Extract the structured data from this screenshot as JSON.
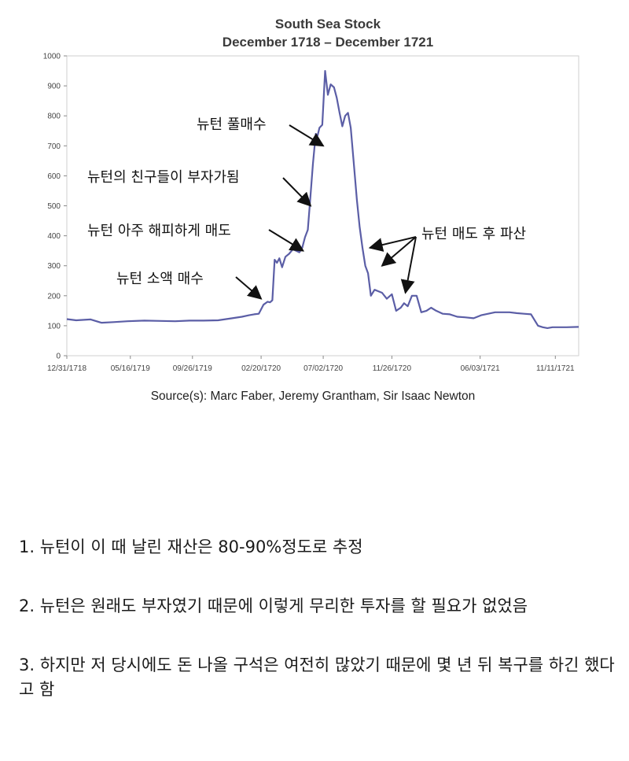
{
  "chart_data": {
    "type": "line",
    "title": "South Sea Stock",
    "subtitle": "December 1718 – December 1721",
    "source": "Source(s): Marc Faber, Jeremy Grantham, Sir Isaac Newton",
    "xlabel": "",
    "ylabel": "",
    "ylim": [
      0,
      1000
    ],
    "yticks": [
      0,
      100,
      200,
      300,
      400,
      500,
      600,
      700,
      800,
      900,
      1000
    ],
    "x_start": "12/31/1718",
    "x_end": "12/31/1721",
    "xticks": [
      "12/31/1718",
      "05/16/1719",
      "09/26/1719",
      "02/20/1720",
      "07/02/1720",
      "11/26/1720",
      "06/03/1721",
      "11/11/1721"
    ],
    "grid": false,
    "line_color": "#5b5ea6",
    "series": [
      {
        "name": "",
        "x": [
          "12/31/1718",
          "01/20/1719",
          "02/20/1719",
          "03/15/1719",
          "04/10/1719",
          "05/10/1719",
          "06/15/1719",
          "07/20/1719",
          "08/20/1719",
          "09/20/1719",
          "10/20/1719",
          "11/20/1719",
          "12/20/1719",
          "01/10/1720",
          "01/25/1720",
          "02/05/1720",
          "02/15/1720",
          "02/25/1720",
          "03/05/1720",
          "03/10/1720",
          "03/15/1720",
          "03/20/1720",
          "03/25/1720",
          "03/30/1720",
          "04/05/1720",
          "04/12/1720",
          "04/20/1720",
          "04/28/1720",
          "05/05/1720",
          "05/12/1720",
          "05/18/1720",
          "05/24/1720",
          "05/30/1720",
          "06/04/1720",
          "06/10/1720",
          "06/16/1720",
          "06/20/1720",
          "06/24/1720",
          "06/30/1720",
          "07/06/1720",
          "07/12/1720",
          "07/18/1720",
          "07/25/1720",
          "07/31/1720",
          "08/06/1720",
          "08/12/1720",
          "08/18/1720",
          "08/24/1720",
          "08/30/1720",
          "09/05/1720",
          "09/12/1720",
          "09/18/1720",
          "09/24/1720",
          "09/30/1720",
          "10/06/1720",
          "10/12/1720",
          "10/20/1720",
          "10/28/1720",
          "11/05/1720",
          "11/15/1720",
          "11/26/1720",
          "12/05/1720",
          "12/15/1720",
          "12/22/1720",
          "12/30/1720",
          "01/08/1721",
          "01/18/1721",
          "01/28/1721",
          "02/08/1721",
          "02/18/1721",
          "03/01/1721",
          "03/15/1721",
          "03/30/1721",
          "04/15/1721",
          "05/01/1721",
          "05/20/1721",
          "06/05/1721",
          "06/20/1721",
          "07/05/1721",
          "07/20/1721",
          "08/05/1721",
          "08/20/1721",
          "09/05/1721",
          "09/20/1721",
          "10/05/1721",
          "10/15/1721",
          "10/25/1721",
          "11/05/1721",
          "11/20/1721",
          "12/05/1721",
          "12/31/1721"
        ],
        "values": [
          122,
          118,
          121,
          110,
          112,
          115,
          117,
          116,
          115,
          117,
          117,
          118,
          125,
          130,
          135,
          138,
          140,
          170,
          180,
          178,
          185,
          320,
          310,
          325,
          295,
          330,
          340,
          355,
          350,
          345,
          360,
          395,
          420,
          520,
          640,
          740,
          735,
          760,
          770,
          950,
          870,
          905,
          895,
          860,
          810,
          765,
          800,
          810,
          760,
          650,
          520,
          430,
          360,
          300,
          275,
          200,
          220,
          215,
          210,
          190,
          205,
          150,
          160,
          175,
          165,
          200,
          200,
          145,
          150,
          160,
          150,
          140,
          138,
          130,
          128,
          125,
          135,
          140,
          145,
          145,
          145,
          142,
          140,
          138,
          100,
          95,
          92,
          95,
          95,
          95,
          96
        ]
      }
    ],
    "annotations": [
      {
        "text": "뉴턴 풀매수",
        "target_x": "07/02/1720",
        "target_y": 700
      },
      {
        "text": "뉴턴의 친구들이 부자가됨",
        "target_x": "06/05/1720",
        "target_y": 500
      },
      {
        "text": "뉴턴 아주 해피하게 매도",
        "target_x": "05/20/1720",
        "target_y": 350
      },
      {
        "text": "뉴턴 소액 매수",
        "target_x": "02/20/1720",
        "target_y": 190
      },
      {
        "text": "뉴턴 매도 후 파산",
        "targets": [
          {
            "x": "10/10/1720",
            "y": 360
          },
          {
            "x": "11/05/1720",
            "y": 300
          },
          {
            "x": "12/25/1720",
            "y": 210
          }
        ]
      }
    ]
  },
  "notes": [
    "1. 뉴턴이 이 때 날린 재산은 80-90%정도로 추정",
    "2. 뉴턴은 원래도 부자였기 때문에 이렇게 무리한 투자를 할 필요가 없었음",
    "3. 하지만 저 당시에도 돈 나올 구석은 여전히 많았기 때문에 몇 년 뒤 복구를 하긴 했다고 함"
  ]
}
